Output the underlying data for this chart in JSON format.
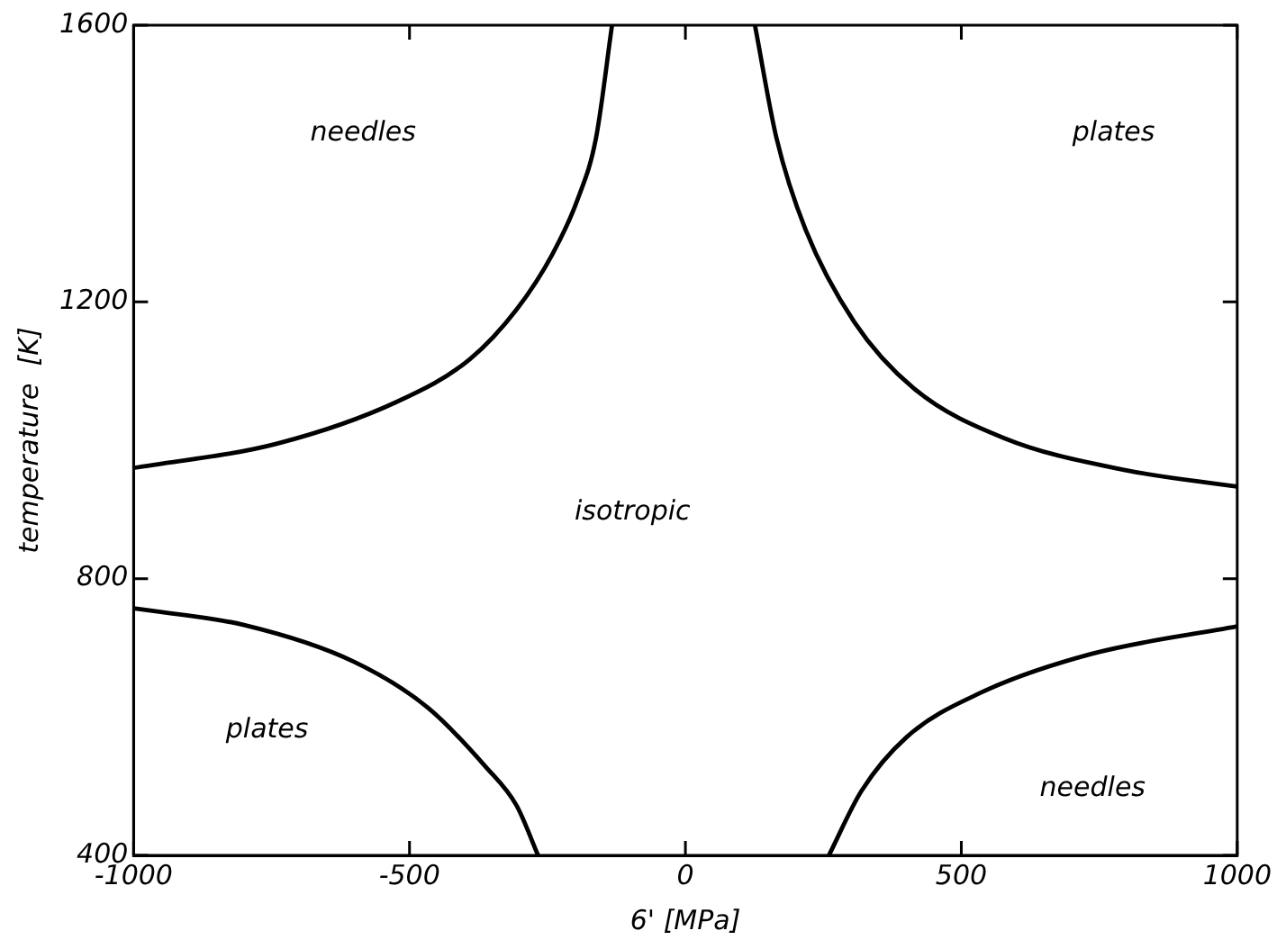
{
  "chart_data": {
    "type": "line",
    "xlabel": "6' [MPa]",
    "ylabel": "temperature  [K]",
    "xlim": [
      -1000,
      1000
    ],
    "xticks": [
      -1000,
      -500,
      0,
      500,
      1000
    ],
    "ylim": [
      400,
      1600
    ],
    "yticks": [
      400,
      800,
      1200,
      1600
    ],
    "grid": false,
    "legend": false,
    "marker": "none",
    "line_style": "solid",
    "series": [
      {
        "color": "#000000",
        "x": [
          -1000,
          -741,
          -522,
          -391,
          -306,
          -241,
          -195,
          -162,
          -133
        ],
        "values": [
          960,
          995,
          1056,
          1117,
          1189,
          1269,
          1349,
          1437,
          1600
        ]
      },
      {
        "color": "#000000",
        "x": [
          126,
          165,
          218,
          306,
          414,
          578,
          797,
          1000
        ],
        "values": [
          1600,
          1437,
          1304,
          1171,
          1075,
          1003,
          957,
          933
        ]
      },
      {
        "color": "#000000",
        "x": [
          -1000,
          -800,
          -601,
          -466,
          -362,
          -306,
          -267
        ],
        "values": [
          757,
          733,
          680,
          613,
          528,
          472,
          400
        ]
      },
      {
        "color": "#000000",
        "x": [
          260,
          319,
          401,
          535,
          735,
          1000
        ],
        "values": [
          400,
          493,
          571,
          635,
          691,
          731
        ]
      }
    ],
    "annotations": [
      "needles",
      "plates",
      "isotropic",
      "plates",
      "needles"
    ]
  }
}
